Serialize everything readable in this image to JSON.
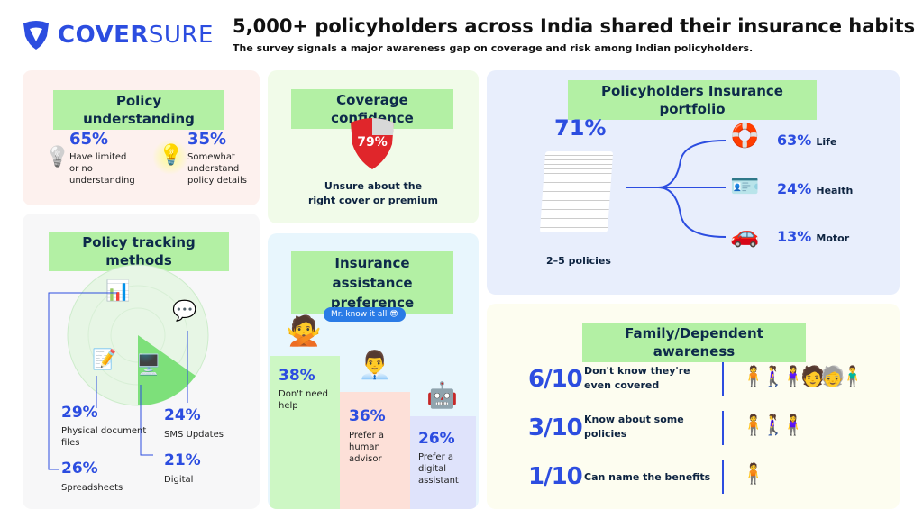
{
  "brand": {
    "name_bold": "COVER",
    "name_light": "SURE",
    "color": "#2c4de0"
  },
  "header": {
    "title": "5,000+ policyholders across India shared their insurance habits",
    "subtitle": "The survey signals a major awareness gap on coverage and risk among Indian policyholders."
  },
  "policy_understanding": {
    "title": "Policy understanding",
    "items": [
      {
        "value": "65%",
        "label": "Have limited or no understanding",
        "icon": "lightbulb-off-icon"
      },
      {
        "value": "35%",
        "label": "Somewhat understand policy details",
        "icon": "lightbulb-on-icon"
      }
    ]
  },
  "coverage_confidence": {
    "title": "Coverage confidence",
    "value": "79%",
    "label_line1": "Unsure about the",
    "label_line2": "right cover or premium",
    "icon": "shield-icon"
  },
  "portfolio": {
    "title": "Policyholders Insurance portfolio",
    "value": "71%",
    "label": "2–5 policies",
    "items": [
      {
        "value": "63%",
        "label": "Life",
        "icon": "lifebuoy-icon"
      },
      {
        "value": "24%",
        "label": "Health",
        "icon": "id-card-icon"
      },
      {
        "value": "13%",
        "label": "Motor",
        "icon": "car-icon"
      }
    ]
  },
  "tracking": {
    "title": "Policy tracking methods",
    "items": [
      {
        "value": "29%",
        "label": "Physical document files",
        "icon": "document-icon"
      },
      {
        "value": "24%",
        "label": "SMS Updates",
        "icon": "chat-bubble-icon"
      },
      {
        "value": "21%",
        "label": "Digital",
        "icon": "computer-icon"
      },
      {
        "value": "26%",
        "label": "Spreadsheets",
        "icon": "spreadsheet-icon"
      }
    ]
  },
  "assistance": {
    "title_line1": "Insurance assistance",
    "title_line2": "preference",
    "bubble": "Mr. know it all 😎",
    "items": [
      {
        "value": "38%",
        "label": "Don't need help",
        "color": "#cdf7c4",
        "icon": "person-crossed-arms-icon"
      },
      {
        "value": "36%",
        "label": "Prefer a human advisor",
        "color": "#fde0d8",
        "icon": "man-advisor-icon"
      },
      {
        "value": "26%",
        "label": "Prefer a digital assistant",
        "color": "#dfe3fb",
        "icon": "robot-icon"
      }
    ]
  },
  "family": {
    "title": "Family/Dependent awareness",
    "items": [
      {
        "value": "6/10",
        "label": "Don't know they're even covered",
        "count": 6
      },
      {
        "value": "3/10",
        "label": "Know about some policies",
        "count": 3
      },
      {
        "value": "1/10",
        "label": "Can name the benefits",
        "count": 1
      }
    ]
  }
}
